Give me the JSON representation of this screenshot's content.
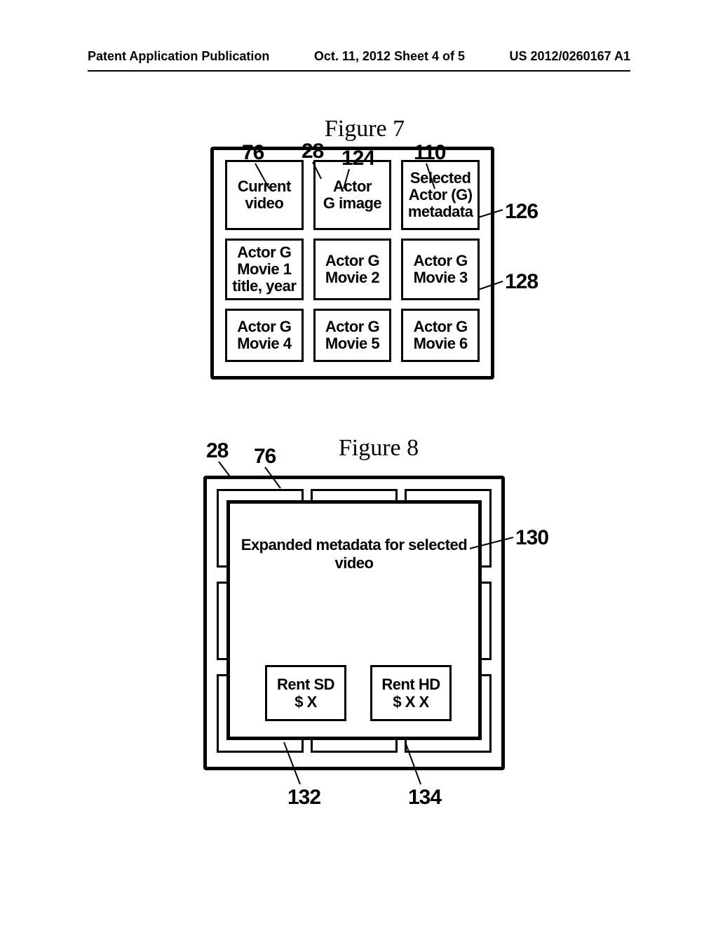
{
  "header": {
    "left": "Patent Application Publication",
    "center": "Oct. 11, 2012  Sheet 4 of 5",
    "right": "US 2012/0260167 A1"
  },
  "fig7": {
    "title": "Figure 7",
    "cells": {
      "r1c1": "Current\nvideo",
      "r1c2": "Actor\nG image",
      "r1c3": "Selected\nActor (G)\nmetadata",
      "r2c1": "Actor G\nMovie 1\ntitle, year",
      "r2c2": "Actor G\nMovie 2",
      "r2c3": "Actor G\nMovie 3",
      "r3c1": "Actor G\nMovie 4",
      "r3c2": "Actor G\nMovie 5",
      "r3c3": "Actor G\nMovie 6"
    },
    "refs": {
      "n76": "76",
      "n28": "28",
      "n124": "124",
      "n110": "110",
      "n126": "126",
      "n128": "128"
    }
  },
  "fig8": {
    "title": "Figure 8",
    "expanded_text": "Expanded metadata for selected video",
    "rent_sd": "Rent SD\n$ X",
    "rent_hd": "Rent HD\n$ X X",
    "refs": {
      "n28": "28",
      "n76": "76",
      "n130": "130",
      "n132": "132",
      "n134": "134"
    }
  }
}
